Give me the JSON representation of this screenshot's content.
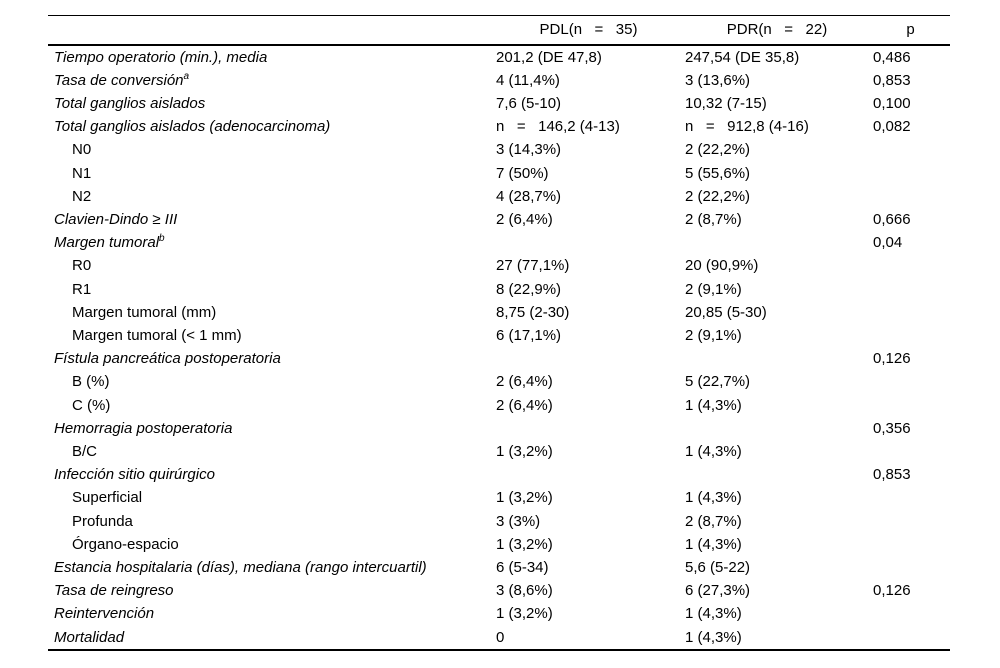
{
  "table": {
    "header": {
      "col_label": "",
      "col_pdl": "PDL(n   =   35)",
      "col_pdr": "PDR(n   =   22)",
      "col_p": "p"
    },
    "rows": [
      {
        "label": "Tiempo operatorio (min.), media",
        "sup": "",
        "italic": true,
        "indent": false,
        "pdl": "201,2 (DE 47,8)",
        "pdr": "247,54 (DE 35,8)",
        "p": "0,486"
      },
      {
        "label": "Tasa de conversión",
        "sup": "a",
        "italic": true,
        "indent": false,
        "pdl": "4 (11,4%)",
        "pdr": "3 (13,6%)",
        "p": "0,853"
      },
      {
        "label": "Total ganglios aislados",
        "sup": "",
        "italic": true,
        "indent": false,
        "pdl": "7,6 (5-10)",
        "pdr": "10,32 (7-15)",
        "p": "0,100"
      },
      {
        "label": "Total ganglios aislados (adenocarcinoma)",
        "sup": "",
        "italic": true,
        "indent": false,
        "pdl": "n   =   146,2 (4-13)",
        "pdr": "n   =   912,8 (4-16)",
        "p": "0,082"
      },
      {
        "label": "N0",
        "sup": "",
        "italic": false,
        "indent": true,
        "pdl": "3 (14,3%)",
        "pdr": "2 (22,2%)",
        "p": ""
      },
      {
        "label": "N1",
        "sup": "",
        "italic": false,
        "indent": true,
        "pdl": "7 (50%)",
        "pdr": "5 (55,6%)",
        "p": ""
      },
      {
        "label": "N2",
        "sup": "",
        "italic": false,
        "indent": true,
        "pdl": "4 (28,7%)",
        "pdr": "2 (22,2%)",
        "p": ""
      },
      {
        "label": "Clavien-Dindo ≥ III",
        "sup": "",
        "italic": true,
        "indent": false,
        "pdl": "2 (6,4%)",
        "pdr": "2 (8,7%)",
        "p": "0,666"
      },
      {
        "label": "Margen tumoral",
        "sup": "b",
        "italic": true,
        "indent": false,
        "pdl": "",
        "pdr": "",
        "p": "0,04"
      },
      {
        "label": "R0",
        "sup": "",
        "italic": false,
        "indent": true,
        "pdl": "27 (77,1%)",
        "pdr": "20 (90,9%)",
        "p": ""
      },
      {
        "label": "R1",
        "sup": "",
        "italic": false,
        "indent": true,
        "pdl": "8 (22,9%)",
        "pdr": "2 (9,1%)",
        "p": ""
      },
      {
        "label": "Margen tumoral (mm)",
        "sup": "",
        "italic": false,
        "indent": true,
        "pdl": "8,75 (2-30)",
        "pdr": "20,85 (5-30)",
        "p": ""
      },
      {
        "label": "Margen tumoral (< 1 mm)",
        "sup": "",
        "italic": false,
        "indent": true,
        "pdl": "6 (17,1%)",
        "pdr": "2 (9,1%)",
        "p": ""
      },
      {
        "label": "Fístula pancreática postoperatoria",
        "sup": "",
        "italic": true,
        "indent": false,
        "pdl": "",
        "pdr": "",
        "p": "0,126"
      },
      {
        "label": "B (%)",
        "sup": "",
        "italic": false,
        "indent": true,
        "pdl": "2 (6,4%)",
        "pdr": "5 (22,7%)",
        "p": ""
      },
      {
        "label": "C (%)",
        "sup": "",
        "italic": false,
        "indent": true,
        "pdl": "2 (6,4%)",
        "pdr": "1 (4,3%)",
        "p": ""
      },
      {
        "label": "Hemorragia postoperatoria",
        "sup": "",
        "italic": true,
        "indent": false,
        "pdl": "",
        "pdr": "",
        "p": "0,356"
      },
      {
        "label": "B/C",
        "sup": "",
        "italic": false,
        "indent": true,
        "pdl": "1 (3,2%)",
        "pdr": "1 (4,3%)",
        "p": ""
      },
      {
        "label": "Infección sitio quirúrgico",
        "sup": "",
        "italic": true,
        "indent": false,
        "pdl": "",
        "pdr": "",
        "p": "0,853"
      },
      {
        "label": "Superficial",
        "sup": "",
        "italic": false,
        "indent": true,
        "pdl": "1 (3,2%)",
        "pdr": "1 (4,3%)",
        "p": ""
      },
      {
        "label": "Profunda",
        "sup": "",
        "italic": false,
        "indent": true,
        "pdl": "3 (3%)",
        "pdr": "2 (8,7%)",
        "p": ""
      },
      {
        "label": "Órgano-espacio",
        "sup": "",
        "italic": false,
        "indent": true,
        "pdl": "1 (3,2%)",
        "pdr": "1 (4,3%)",
        "p": ""
      },
      {
        "label": "Estancia hospitalaria (días), mediana (rango intercuartil)",
        "sup": "",
        "italic": true,
        "indent": false,
        "pdl": "6 (5-34)",
        "pdr": "5,6 (5-22)",
        "p": ""
      },
      {
        "label": "Tasa de reingreso",
        "sup": "",
        "italic": true,
        "indent": false,
        "pdl": "3 (8,6%)",
        "pdr": "6 (27,3%)",
        "p": "0,126"
      },
      {
        "label": "Reintervención",
        "sup": "",
        "italic": true,
        "indent": false,
        "pdl": "1 (3,2%)",
        "pdr": "1 (4,3%)",
        "p": ""
      },
      {
        "label": "Mortalidad",
        "sup": "",
        "italic": true,
        "indent": false,
        "pdl": "0",
        "pdr": "1 (4,3%)",
        "p": ""
      }
    ],
    "colors": {
      "background": "#ffffff",
      "text": "#000000",
      "rule": "#000000"
    }
  }
}
